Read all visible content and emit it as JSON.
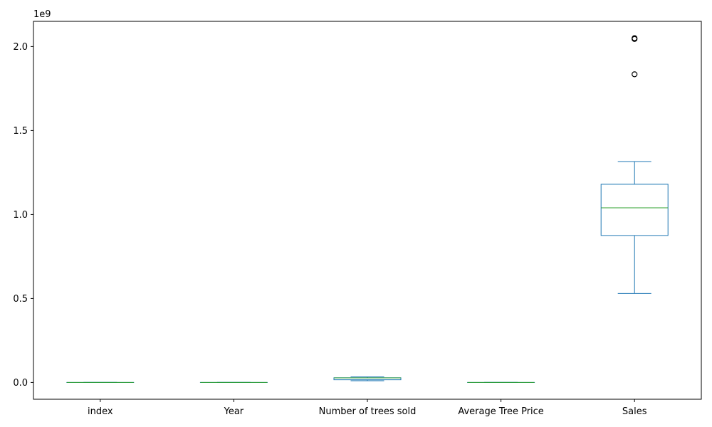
{
  "chart_data": {
    "type": "box",
    "title": "",
    "xlabel": "",
    "ylabel": "",
    "y_scale_offset_text": "1e9",
    "ylim": [
      -100000000,
      2150000000
    ],
    "yticks": [
      0,
      500000000,
      1000000000,
      1500000000,
      2000000000
    ],
    "ytick_labels": [
      "0.0",
      "0.5",
      "1.0",
      "1.5",
      "2.0"
    ],
    "grid": false,
    "legend": "none",
    "colors": {
      "box": "#1f77b4",
      "median": "#2ca02c",
      "flier": "#000000",
      "axes": "#000000"
    },
    "categories": [
      "index",
      "Year",
      "Number of trees sold",
      "Average Tree Price",
      "Sales"
    ],
    "boxes": [
      {
        "category": "index",
        "whislo": 0,
        "q1": 3,
        "med": 5.5,
        "q3": 8,
        "whishi": 11,
        "fliers": []
      },
      {
        "category": "Year",
        "whislo": 2010,
        "q1": 2012,
        "med": 2015,
        "q3": 2017,
        "whishi": 2021,
        "fliers": []
      },
      {
        "category": "Number of trees sold",
        "whislo": 10000000,
        "q1": 16000000,
        "med": 27000000,
        "q3": 28000000,
        "whishi": 33000000,
        "fliers": []
      },
      {
        "category": "Average Tree Price",
        "whislo": 34,
        "q1": 40,
        "med": 55,
        "q3": 70,
        "whishi": 81,
        "fliers": []
      },
      {
        "category": "Sales",
        "whislo": 530000000,
        "q1": 875000000,
        "med": 1040000000,
        "q3": 1180000000,
        "whishi": 1315000000,
        "fliers": [
          1835000000,
          2045000000,
          2050000000
        ]
      }
    ]
  }
}
